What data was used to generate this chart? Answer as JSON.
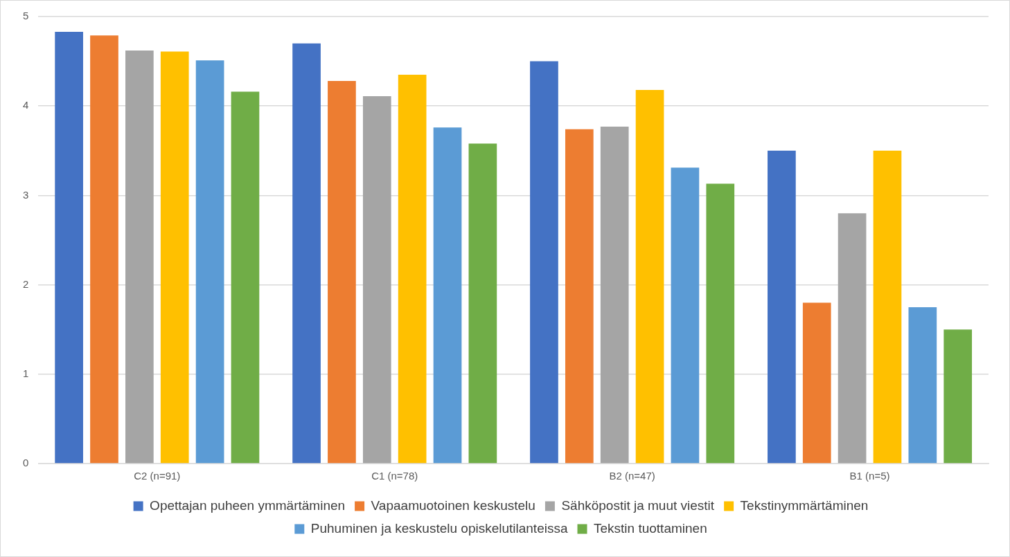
{
  "chart_data": {
    "type": "bar",
    "categories": [
      "C2 (n=91)",
      "C1 (n=78)",
      "B2 (n=47)",
      "B1 (n=5)"
    ],
    "series": [
      {
        "name": "Opettajan puheen ymmärtäminen",
        "color": "#4472c4",
        "values": [
          4.83,
          4.7,
          4.5,
          3.5
        ]
      },
      {
        "name": "Vapaamuotoinen keskustelu",
        "color": "#ed7d31",
        "values": [
          4.79,
          4.28,
          3.74,
          1.8
        ]
      },
      {
        "name": "Sähköpostit ja muut viestit",
        "color": "#a5a5a5",
        "values": [
          4.62,
          4.11,
          3.77,
          2.8
        ]
      },
      {
        "name": "Tekstinymmärtäminen",
        "color": "#ffc000",
        "values": [
          4.61,
          4.35,
          4.18,
          3.5
        ]
      },
      {
        "name": "Puhuminen ja keskustelu opiskelutilanteissa",
        "color": "#5b9bd5",
        "values": [
          4.51,
          3.76,
          3.31,
          1.75
        ]
      },
      {
        "name": "Tekstin tuottaminen",
        "color": "#70ad47",
        "values": [
          4.16,
          3.58,
          3.13,
          1.5
        ]
      }
    ],
    "ylim": [
      0,
      5
    ],
    "yticks": [
      0,
      1,
      2,
      3,
      4,
      5
    ],
    "grid": "y",
    "legend": "bottom"
  }
}
